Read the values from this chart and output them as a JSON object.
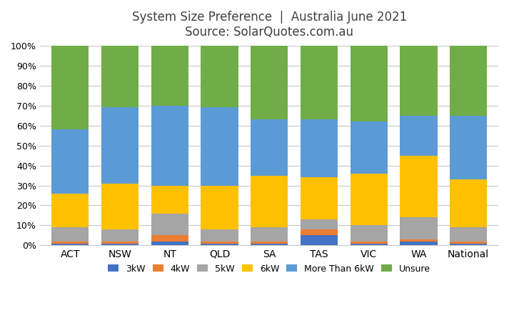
{
  "categories": [
    "ACT",
    "NSW",
    "NT",
    "QLD",
    "SA",
    "TAS",
    "VIC",
    "WA",
    "National"
  ],
  "series": {
    "3kW": [
      1,
      1,
      2,
      1,
      1,
      5,
      1,
      2,
      1
    ],
    "4kW": [
      1,
      1,
      3,
      1,
      1,
      3,
      1,
      1,
      1
    ],
    "5kW": [
      7,
      6,
      11,
      6,
      7,
      5,
      8,
      11,
      7
    ],
    "6kW": [
      17,
      23,
      14,
      22,
      26,
      21,
      26,
      31,
      24
    ],
    "More Than 6kW": [
      32,
      38,
      40,
      39,
      28,
      29,
      26,
      20,
      32
    ],
    "Unsure": [
      42,
      31,
      30,
      31,
      37,
      37,
      38,
      35,
      35
    ]
  },
  "colors": {
    "3kW": "#4472C4",
    "4kW": "#ED7D31",
    "5kW": "#A5A5A5",
    "6kW": "#FFC000",
    "More Than 6kW": "#5B9BD5",
    "Unsure": "#70AD47"
  },
  "title_line1": "System Size Preference  |  Australia June 2021",
  "title_line2": "Source: SolarQuotes.com.au",
  "ylim": [
    0,
    100
  ],
  "yticks": [
    0,
    10,
    20,
    30,
    40,
    50,
    60,
    70,
    80,
    90,
    100
  ],
  "ytick_labels": [
    "0%",
    "10%",
    "20%",
    "30%",
    "40%",
    "50%",
    "60%",
    "70%",
    "80%",
    "90%",
    "100%"
  ],
  "background_color": "#FFFFFF",
  "title_fontsize": 12,
  "bar_width": 0.75,
  "legend_order": [
    "3kW",
    "4kW",
    "5kW",
    "6kW",
    "More Than 6kW",
    "Unsure"
  ]
}
